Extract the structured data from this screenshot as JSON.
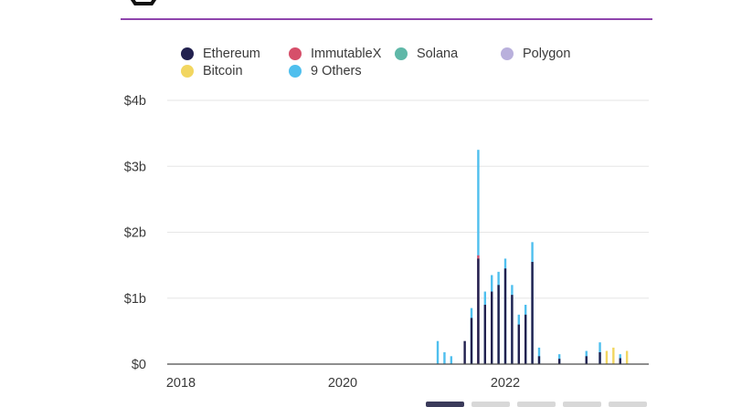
{
  "colors": {
    "accent_rule": "#8e44ad",
    "grid": "#e6e6e6",
    "axis": "#4a4a4a",
    "text": "#3a3a3a"
  },
  "legend": [
    {
      "name": "Ethereum",
      "color": "#22214f"
    },
    {
      "name": "ImmutableX",
      "color": "#d64f6a"
    },
    {
      "name": "Solana",
      "color": "#5fb8a8"
    },
    {
      "name": "Polygon",
      "color": "#b9b0dc"
    },
    {
      "name": "Bitcoin",
      "color": "#f2d660"
    },
    {
      "name": "9 Others",
      "color": "#4fbfee"
    }
  ],
  "chart_data": {
    "type": "bar",
    "ylabel": "",
    "xlabel": "",
    "ylim": [
      0,
      4
    ],
    "y_ticks": [
      "$0",
      "$1b",
      "$2b",
      "$3b",
      "$4b"
    ],
    "x_ticks": [
      "2018",
      "2020",
      "2022"
    ],
    "grid": true,
    "legend_placement": "top",
    "value_unit": "billions USD, weekly volume",
    "series": [
      {
        "name": "Ethereum",
        "points": [
          [
            "2021-07",
            0.35
          ],
          [
            "2021-08",
            0.7
          ],
          [
            "2021-09",
            1.6
          ],
          [
            "2021-10",
            0.9
          ],
          [
            "2021-11",
            1.1
          ],
          [
            "2021-12",
            1.2
          ],
          [
            "2022-01",
            1.45
          ],
          [
            "2022-02",
            1.05
          ],
          [
            "2022-03",
            0.6
          ],
          [
            "2022-04",
            0.75
          ],
          [
            "2022-05",
            1.55
          ],
          [
            "2022-06",
            0.12
          ],
          [
            "2022-09",
            0.08
          ],
          [
            "2023-01",
            0.12
          ],
          [
            "2023-03",
            0.18
          ],
          [
            "2023-06",
            0.09
          ]
        ]
      },
      {
        "name": "9 Others",
        "points": [
          [
            "2021-03",
            0.35
          ],
          [
            "2021-04",
            0.18
          ],
          [
            "2021-05",
            0.12
          ],
          [
            "2021-08",
            0.85
          ],
          [
            "2021-09",
            3.25
          ],
          [
            "2021-10",
            1.1
          ],
          [
            "2021-11",
            1.35
          ],
          [
            "2021-12",
            1.4
          ],
          [
            "2022-01",
            1.6
          ],
          [
            "2022-02",
            1.2
          ],
          [
            "2022-03",
            0.75
          ],
          [
            "2022-04",
            0.9
          ],
          [
            "2022-05",
            1.85
          ],
          [
            "2022-06",
            0.25
          ],
          [
            "2022-09",
            0.15
          ],
          [
            "2023-01",
            0.2
          ],
          [
            "2023-03",
            0.33
          ],
          [
            "2023-06",
            0.15
          ]
        ]
      },
      {
        "name": "ImmutableX",
        "points": [
          [
            "2021-09",
            1.65
          ]
        ]
      },
      {
        "name": "Bitcoin",
        "points": [
          [
            "2023-04",
            0.2
          ],
          [
            "2023-05",
            0.25
          ],
          [
            "2023-07",
            0.2
          ]
        ]
      }
    ]
  }
}
